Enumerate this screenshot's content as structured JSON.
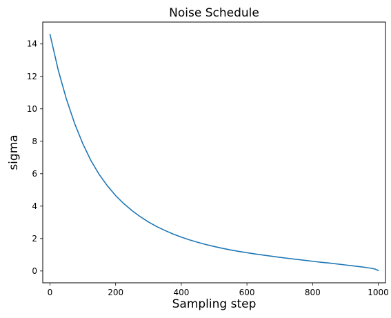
{
  "chart_data": {
    "type": "line",
    "title": "Noise Schedule",
    "xlabel": "Sampling step",
    "ylabel": "sigma",
    "xlim": [
      -22,
      1022
    ],
    "ylim": [
      -0.73,
      15.35
    ],
    "xticks": [
      0,
      200,
      400,
      600,
      800,
      1000
    ],
    "yticks": [
      0,
      2,
      4,
      6,
      8,
      10,
      12,
      14
    ],
    "grid": false,
    "series": [
      {
        "color": "#1f77b4",
        "x": [
          0,
          25,
          50,
          75,
          100,
          125,
          150,
          175,
          200,
          225,
          250,
          275,
          300,
          325,
          350,
          375,
          400,
          425,
          450,
          475,
          500,
          525,
          550,
          575,
          600,
          625,
          650,
          675,
          700,
          725,
          750,
          775,
          800,
          825,
          850,
          875,
          900,
          925,
          950,
          975,
          990,
          1000
        ],
        "y": [
          14.6,
          12.4,
          10.6,
          9.1,
          7.85,
          6.8,
          5.95,
          5.25,
          4.65,
          4.15,
          3.72,
          3.35,
          3.02,
          2.74,
          2.5,
          2.28,
          2.09,
          1.92,
          1.77,
          1.63,
          1.51,
          1.4,
          1.3,
          1.21,
          1.13,
          1.05,
          0.98,
          0.91,
          0.84,
          0.78,
          0.72,
          0.66,
          0.6,
          0.54,
          0.49,
          0.43,
          0.37,
          0.31,
          0.25,
          0.18,
          0.12,
          0.03
        ]
      }
    ]
  }
}
